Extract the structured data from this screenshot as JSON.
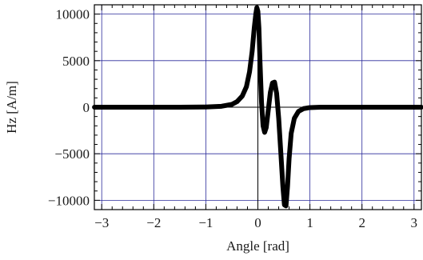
{
  "chart_data": {
    "type": "line",
    "title": "",
    "xlabel": "Angle  [rad]",
    "ylabel": "Hz  [A/m]",
    "xlim": [
      -3.14159,
      3.14159
    ],
    "ylim": [
      -11000,
      11000
    ],
    "x_ticks": [
      -3,
      -2,
      -1,
      0,
      1,
      2,
      3
    ],
    "y_ticks": [
      -10000,
      -5000,
      0,
      5000,
      10000
    ],
    "y_tick_labels": [
      "−10000",
      "−5000",
      "0",
      "5000",
      "10000"
    ],
    "x_tick_labels": [
      "−3",
      "−2",
      "−1",
      "0",
      "1",
      "2",
      "3"
    ],
    "grid": true,
    "colors": {
      "line": "#000000",
      "grid": "#2b2b9a",
      "frame": "#000000",
      "zero_axes": "#000000"
    },
    "series": [
      {
        "x": [
          -3.14,
          -2.5,
          -2.0,
          -1.5,
          -1.0,
          -0.7,
          -0.5,
          -0.4,
          -0.3,
          -0.22,
          -0.16,
          -0.11,
          -0.07,
          -0.04,
          -0.02,
          0.0,
          0.02,
          0.04,
          0.07,
          0.1,
          0.13,
          0.16,
          0.2,
          0.24,
          0.28,
          0.32,
          0.36,
          0.4,
          0.44,
          0.48,
          0.51,
          0.54,
          0.57,
          0.6,
          0.64,
          0.7,
          0.78,
          0.88,
          1.0,
          1.2,
          1.6,
          2.0,
          2.5,
          3.14
        ],
        "y": [
          0,
          0,
          0,
          0,
          20,
          100,
          300,
          600,
          1200,
          2200,
          3800,
          6000,
          8500,
          10000,
          10700,
          10300,
          8500,
          5000,
          500,
          -2000,
          -2700,
          -2200,
          -300,
          1600,
          2600,
          2700,
          1500,
          -1200,
          -4800,
          -8500,
          -10500,
          -10600,
          -8500,
          -5500,
          -2800,
          -1200,
          -450,
          -150,
          -40,
          0,
          0,
          0,
          0,
          0
        ]
      }
    ]
  }
}
